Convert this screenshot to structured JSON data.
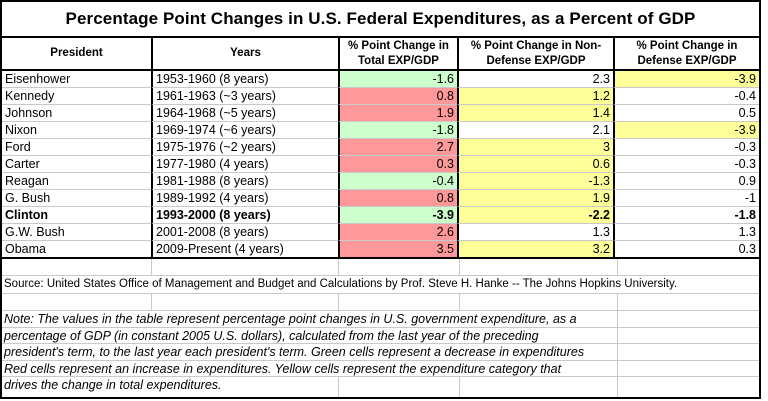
{
  "chart_data": {
    "type": "table",
    "title": "Percentage Point Changes in U.S. Federal Expenditures, as a Percent of GDP",
    "columns": [
      "President",
      "Years",
      "% Point Change in Total EXP/GDP",
      "% Point Change in Non-Defense EXP/GDP",
      "% Point Change in Defense EXP/GDP"
    ],
    "rows": [
      {
        "president": "Eisenhower",
        "years": "1953-1960 (8 years)",
        "total": "-1.6",
        "total_color": "green",
        "nondef": "2.3",
        "nondef_color": "white",
        "def": "-3.9",
        "def_color": "yellow",
        "bold": false
      },
      {
        "president": "Kennedy",
        "years": "1961-1963 (~3 years)",
        "total": "0.8",
        "total_color": "red",
        "nondef": "1.2",
        "nondef_color": "yellow",
        "def": "-0.4",
        "def_color": "white",
        "bold": false
      },
      {
        "president": "Johnson",
        "years": "1964-1968 (~5 years)",
        "total": "1.9",
        "total_color": "red",
        "nondef": "1.4",
        "nondef_color": "yellow",
        "def": "0.5",
        "def_color": "white",
        "bold": false
      },
      {
        "president": "Nixon",
        "years": "1969-1974 (~6 years)",
        "total": "-1.8",
        "total_color": "green",
        "nondef": "2.1",
        "nondef_color": "white",
        "def": "-3.9",
        "def_color": "yellow",
        "bold": false
      },
      {
        "president": "Ford",
        "years": "1975-1976 (~2 years)",
        "total": "2.7",
        "total_color": "red",
        "nondef": "3",
        "nondef_color": "yellow",
        "def": "-0.3",
        "def_color": "white",
        "bold": false
      },
      {
        "president": "Carter",
        "years": "1977-1980 (4 years)",
        "total": "0.3",
        "total_color": "red",
        "nondef": "0.6",
        "nondef_color": "yellow",
        "def": "-0.3",
        "def_color": "white",
        "bold": false
      },
      {
        "president": "Reagan",
        "years": "1981-1988 (8 years)",
        "total": "-0.4",
        "total_color": "green",
        "nondef": "-1.3",
        "nondef_color": "yellow",
        "def": "0.9",
        "def_color": "white",
        "bold": false
      },
      {
        "president": "G. Bush",
        "years": "1989-1992 (4 years)",
        "total": "0.8",
        "total_color": "red",
        "nondef": "1.9",
        "nondef_color": "yellow",
        "def": "-1",
        "def_color": "white",
        "bold": false
      },
      {
        "president": "Clinton",
        "years": "1993-2000 (8 years)",
        "total": "-3.9",
        "total_color": "green",
        "nondef": "-2.2",
        "nondef_color": "yellow",
        "def": "-1.8",
        "def_color": "white",
        "bold": true
      },
      {
        "president": "G.W. Bush",
        "years": "2001-2008 (8 years)",
        "total": "2.6",
        "total_color": "red",
        "nondef": "1.3",
        "nondef_color": "white",
        "def": "1.3",
        "def_color": "white",
        "bold": false
      },
      {
        "president": "Obama",
        "years": "2009-Present (4 years)",
        "total": "3.5",
        "total_color": "red",
        "nondef": "3.2",
        "nondef_color": "yellow",
        "def": "0.3",
        "def_color": "white",
        "bold": false
      }
    ],
    "source": "Source: United States Office of Management and Budget and Calculations by Prof. Steve H. Hanke -- The Johns Hopkins University.",
    "notes": [
      "Note: The values in the table represent percentage point changes in U.S. government expenditure, as a",
      "percentage of GDP (in constant 2005 U.S. dollars), calculated from the last year of the preceding",
      "president's term, to the last year each president's term. Green cells represent a decrease in expenditures",
      "Red cells represent an increase in expenditures.  Yellow cells represent the expenditure category that",
      "drives the change in total expenditures."
    ]
  },
  "colors": {
    "green": "#ccffcc",
    "red": "#ff9999",
    "yellow": "#ffff99",
    "white": "#ffffff",
    "grid": "#c9c9c9",
    "border": "#000000"
  }
}
